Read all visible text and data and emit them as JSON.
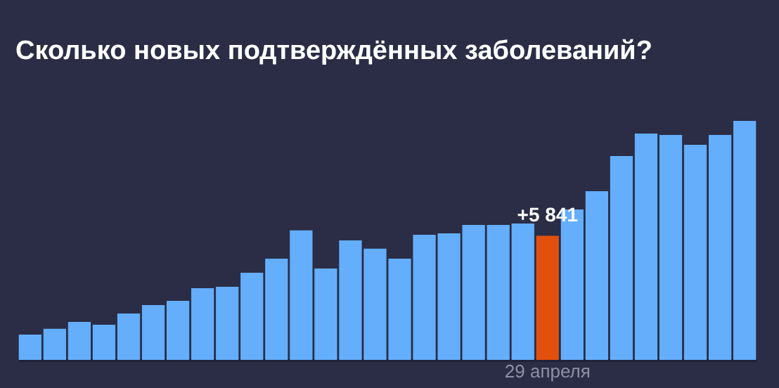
{
  "chart_data": {
    "type": "bar",
    "title": "Сколько новых подтверждённых заболеваний?",
    "categories": [
      null,
      null,
      null,
      null,
      null,
      null,
      null,
      null,
      null,
      null,
      null,
      null,
      null,
      null,
      null,
      null,
      null,
      null,
      null,
      null,
      null,
      "29 апреля",
      null,
      null,
      null,
      null,
      null,
      null,
      null,
      null
    ],
    "values": [
      1190,
      1460,
      1790,
      1650,
      2180,
      2580,
      2780,
      3370,
      3440,
      4100,
      4760,
      6090,
      4300,
      5620,
      5230,
      4760,
      5890,
      5950,
      6350,
      6350,
      6420,
      5841,
      7080,
      7940,
      9590,
      10650,
      10580,
      10120,
      10580,
      11245
    ],
    "colors": [
      "#64aefc",
      "#64aefc",
      "#64aefc",
      "#64aefc",
      "#64aefc",
      "#64aefc",
      "#64aefc",
      "#64aefc",
      "#64aefc",
      "#64aefc",
      "#64aefc",
      "#64aefc",
      "#64aefc",
      "#64aefc",
      "#64aefc",
      "#64aefc",
      "#64aefc",
      "#64aefc",
      "#64aefc",
      "#64aefc",
      "#64aefc",
      "#e2500e",
      "#64aefc",
      "#64aefc",
      "#64aefc",
      "#64aefc",
      "#64aefc",
      "#64aefc",
      "#64aefc",
      "#64aefc"
    ],
    "value_labels": [
      null,
      null,
      null,
      null,
      null,
      null,
      null,
      null,
      null,
      null,
      null,
      null,
      null,
      null,
      null,
      null,
      null,
      null,
      null,
      null,
      null,
      "+5 841",
      null,
      null,
      null,
      null,
      null,
      null,
      null,
      null
    ],
    "grid": false
  }
}
